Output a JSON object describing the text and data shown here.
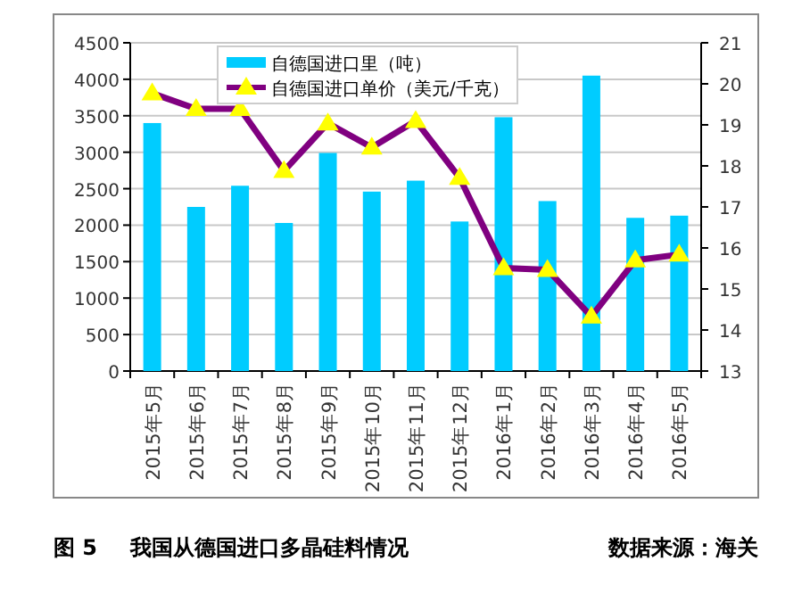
{
  "chart_data": {
    "type": "bar",
    "title": "我国从德国进口多晶硅料情况",
    "annotations": [
      "图 5",
      "数据来源：海关"
    ],
    "categories": [
      "2015年5月",
      "2015年6月",
      "2015年7月",
      "2015年8月",
      "2015年9月",
      "2015年10月",
      "2015年11月",
      "2015年12月",
      "2016年1月",
      "2016年2月",
      "2016年3月",
      "2016年4月",
      "2016年5月"
    ],
    "series": [
      {
        "name": "自德国进口里（吨）",
        "color": "#00ccff",
        "values": [
          3400,
          2250,
          2540,
          2030,
          2990,
          2460,
          2610,
          2050,
          3480,
          2330,
          4050,
          2100,
          2130
        ]
      },
      {
        "name": "自德国进口单价（美元/千克）",
        "type": "line",
        "axis": "y2",
        "color": "#800080",
        "marker": "triangle",
        "values": [
          19.77,
          19.39,
          19.39,
          17.88,
          19.04,
          18.45,
          19.1,
          17.71,
          15.51,
          15.47,
          14.33,
          15.7,
          15.84
        ]
      }
    ],
    "ylim": [
      0,
      4500
    ],
    "yticks": [
      0,
      500,
      1000,
      1500,
      2000,
      2500,
      3000,
      3500,
      4000,
      4500
    ],
    "y2lim": [
      13,
      21
    ],
    "y2ticks": [
      13,
      14,
      15,
      16,
      17,
      18,
      19,
      20,
      21
    ],
    "grid": "y",
    "legend": "top"
  }
}
